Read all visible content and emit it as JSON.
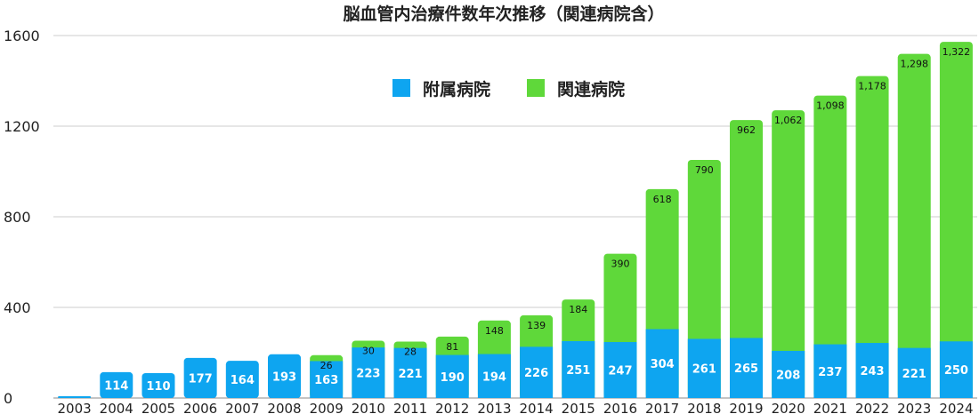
{
  "chart_data": {
    "type": "bar",
    "stacked": true,
    "title": "脳血管内治療件数年次推移（関連病院含）",
    "categories": [
      "2003",
      "2004",
      "2005",
      "2006",
      "2007",
      "2008",
      "2009",
      "2010",
      "2011",
      "2012",
      "2013",
      "2014",
      "2015",
      "2016",
      "2017",
      "2018",
      "2019",
      "2020",
      "2021",
      "2022",
      "2023",
      "2024"
    ],
    "series": [
      {
        "name": "附属病院",
        "color": "#0ea5f0",
        "values": [
          8,
          114,
          110,
          177,
          164,
          193,
          163,
          223,
          221,
          190,
          194,
          226,
          251,
          247,
          304,
          261,
          265,
          208,
          237,
          243,
          221,
          250
        ],
        "labels": [
          "",
          "114",
          "110",
          "177",
          "164",
          "193",
          "163",
          "223",
          "221",
          "190",
          "194",
          "226",
          "251",
          "247",
          "304",
          "261",
          "265",
          "208",
          "237",
          "243",
          "221",
          "250"
        ]
      },
      {
        "name": "関連病院",
        "color": "#5fd83a",
        "values": [
          0,
          0,
          0,
          0,
          0,
          0,
          26,
          30,
          28,
          81,
          148,
          139,
          184,
          390,
          618,
          790,
          962,
          1062,
          1098,
          1178,
          1298,
          1322
        ],
        "labels": [
          "",
          "",
          "",
          "",
          "",
          "",
          "26",
          "30",
          "28",
          "81",
          "148",
          "139",
          "184",
          "390",
          "618",
          "790",
          "962",
          "1,062",
          "1,098",
          "1,178",
          "1,298",
          "1,322"
        ]
      }
    ],
    "yticks": [
      "0",
      "400",
      "800",
      "1200",
      "1600"
    ],
    "ylim": [
      0,
      1600
    ],
    "grid": true,
    "legend_position": "top-center"
  }
}
